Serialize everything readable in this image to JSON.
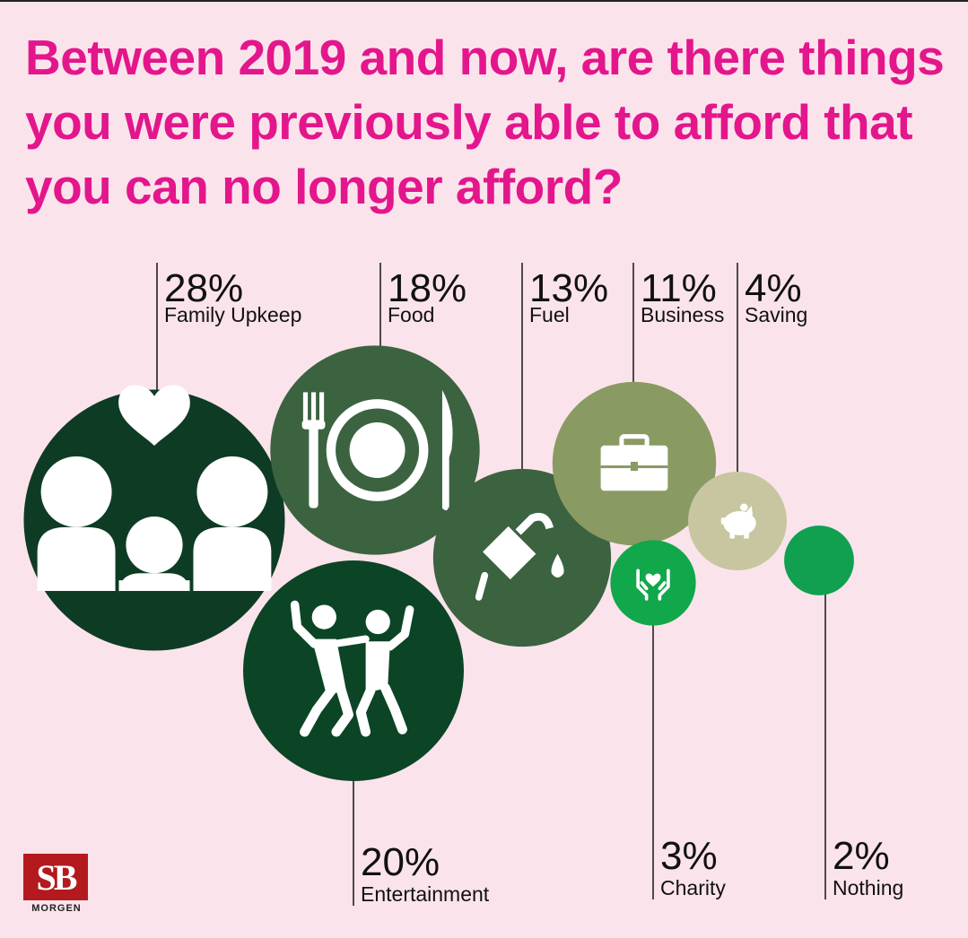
{
  "title": "Between 2019 and now, are there things you were previously able to afford that you can no longer afford?",
  "logo": {
    "mark": "SB",
    "text": "MORGEN"
  },
  "chart_data": {
    "type": "bubble",
    "title": "Between 2019 and now, are there things you were previously able to afford that you can no longer afford?",
    "unit": "%",
    "categories": [
      "Family Upkeep",
      "Food",
      "Fuel",
      "Business",
      "Saving",
      "Entertainment",
      "Charity",
      "Nothing"
    ],
    "values": [
      28,
      18,
      13,
      11,
      4,
      20,
      3,
      2
    ],
    "labels": [
      "28%",
      "18%",
      "13%",
      "11%",
      "4%",
      "20%",
      "3%",
      "2%"
    ],
    "icons": [
      "family-icon",
      "food-plate-icon",
      "fuel-pump-icon",
      "briefcase-icon",
      "piggy-bank-icon",
      "dancing-people-icon",
      "charity-hands-icon",
      ""
    ],
    "colors": [
      "#0e3b24",
      "#3b6340",
      "#3b6340",
      "#8a9a63",
      "#c8c6a0",
      "#0b4526",
      "#10a84a",
      "#10a050"
    ]
  }
}
